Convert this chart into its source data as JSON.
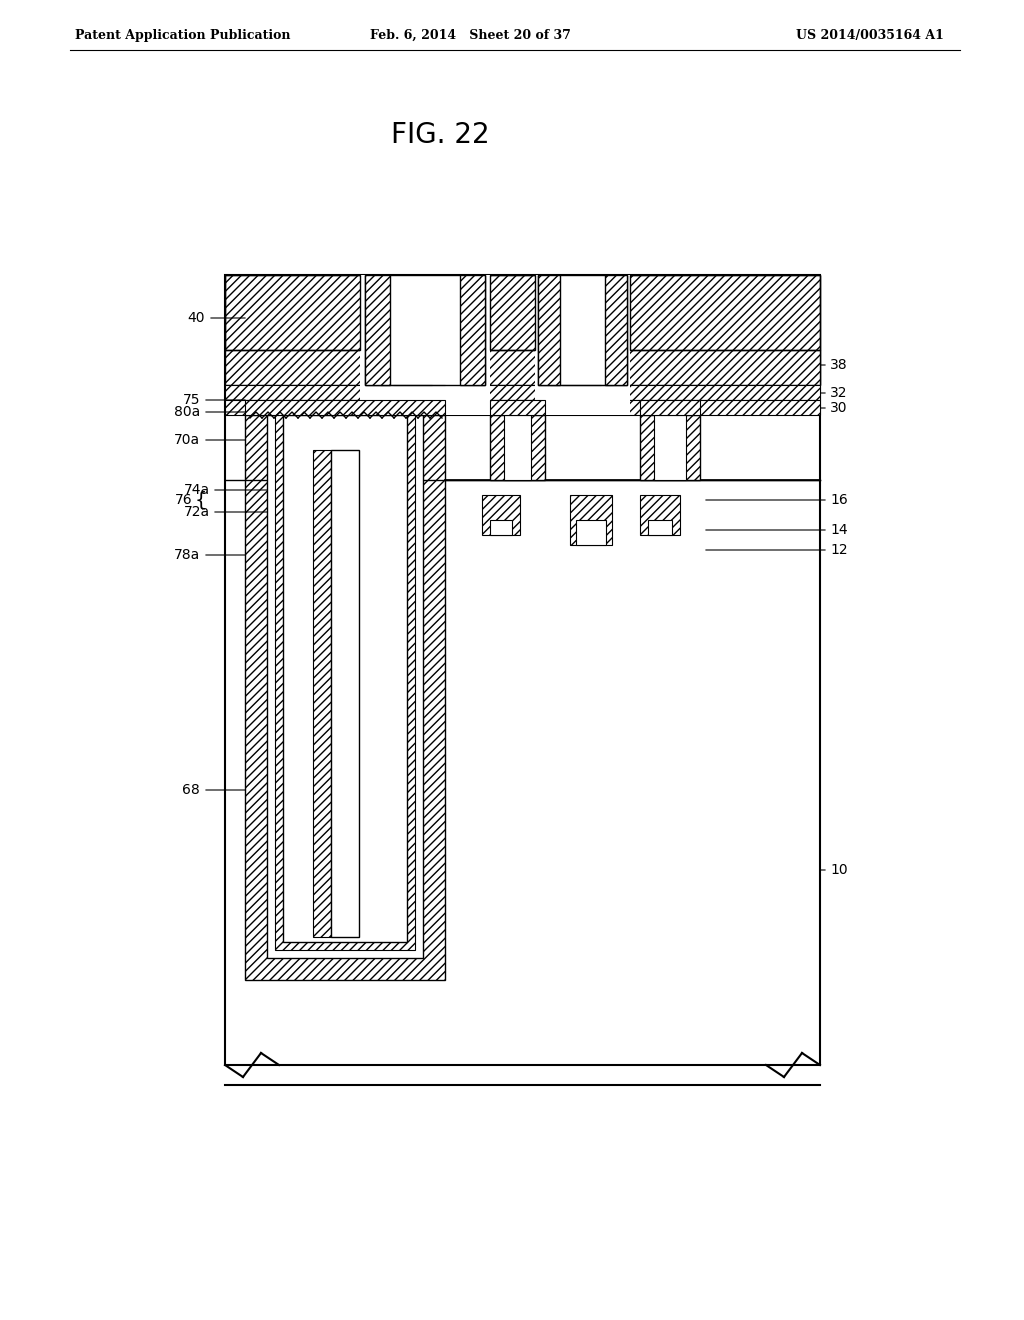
{
  "header_left": "Patent Application Publication",
  "header_mid": "Feb. 6, 2014   Sheet 20 of 37",
  "header_right": "US 2014/0035164 A1",
  "fig_label": "FIG. 22",
  "bg_color": "#ffffff",
  "line_color": "#000000"
}
